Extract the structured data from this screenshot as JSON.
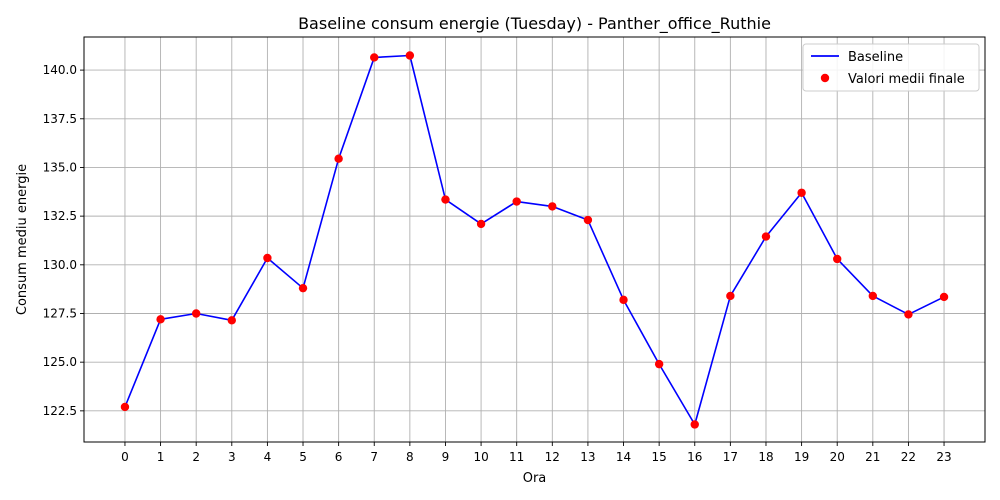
{
  "chart_data": {
    "type": "line",
    "title": "Baseline consum energie (Tuesday) - Panther_office_Ruthie",
    "xlabel": "Ora",
    "ylabel": "Consum mediu energie",
    "x": [
      0,
      1,
      2,
      3,
      4,
      5,
      6,
      7,
      8,
      9,
      10,
      11,
      12,
      13,
      14,
      15,
      16,
      17,
      18,
      19,
      20,
      21,
      22,
      23
    ],
    "x_tick_labels": [
      "0",
      "1",
      "2",
      "3",
      "4",
      "5",
      "6",
      "7",
      "8",
      "9",
      "10",
      "11",
      "12",
      "13",
      "14",
      "15",
      "16",
      "17",
      "18",
      "19",
      "20",
      "21",
      "22",
      "23"
    ],
    "y_ticks": [
      122.5,
      125.0,
      127.5,
      130.0,
      132.5,
      135.0,
      137.5,
      140.0
    ],
    "y_tick_labels": [
      "122.5",
      "125.0",
      "127.5",
      "130.0",
      "132.5",
      "135.0",
      "137.5",
      "140.0"
    ],
    "ylim": [
      120.9,
      141.7
    ],
    "xlim": [
      -1.15,
      24.15
    ],
    "grid": true,
    "legend_position": "top-right",
    "series": [
      {
        "name": "Baseline",
        "kind": "line",
        "color": "#0000ff",
        "values": [
          122.7,
          127.2,
          127.5,
          127.15,
          130.35,
          128.8,
          135.45,
          140.65,
          140.75,
          133.35,
          132.1,
          133.25,
          133.0,
          132.3,
          128.2,
          124.9,
          121.8,
          128.4,
          131.45,
          133.7,
          130.3,
          128.4,
          127.45,
          128.35
        ]
      },
      {
        "name": "Valori medii finale",
        "kind": "scatter",
        "color": "#ff0000",
        "values": [
          122.7,
          127.2,
          127.5,
          127.15,
          130.35,
          128.8,
          135.45,
          140.65,
          140.75,
          133.35,
          132.1,
          133.25,
          133.0,
          132.3,
          128.2,
          124.9,
          121.8,
          128.4,
          131.45,
          133.7,
          130.3,
          128.4,
          127.45,
          128.35
        ]
      }
    ]
  }
}
